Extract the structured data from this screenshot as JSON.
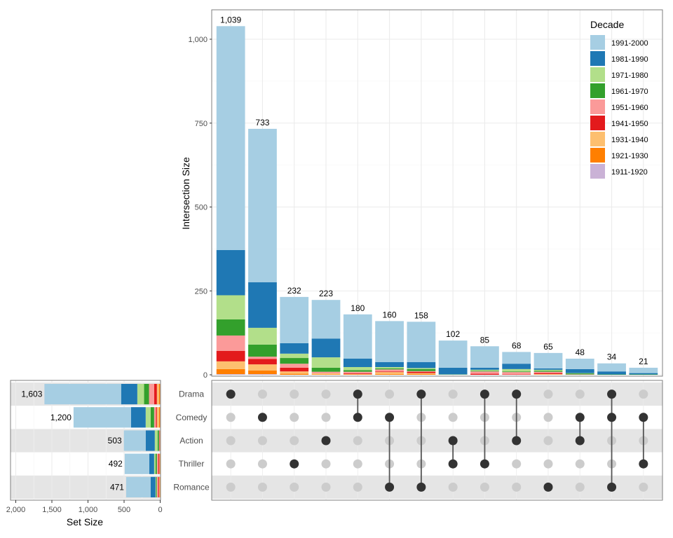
{
  "chart_data": {
    "type": "bar",
    "subtype": "upset-plot",
    "legend": {
      "title": "Decade",
      "placement": "top-right",
      "entries": [
        {
          "label": "1991-2000",
          "color": "#A6CEE3"
        },
        {
          "label": "1981-1990",
          "color": "#1F78B4"
        },
        {
          "label": "1971-1980",
          "color": "#B2DF8A"
        },
        {
          "label": "1961-1970",
          "color": "#33A02C"
        },
        {
          "label": "1951-1960",
          "color": "#FB9A99"
        },
        {
          "label": "1941-1950",
          "color": "#E31A1C"
        },
        {
          "label": "1931-1940",
          "color": "#FDBF6F"
        },
        {
          "label": "1921-1930",
          "color": "#FF7F00"
        },
        {
          "label": "1911-1920",
          "color": "#CAB2D6"
        }
      ]
    },
    "sets": [
      "Drama",
      "Comedy",
      "Action",
      "Thriller",
      "Romance"
    ],
    "intersections": {
      "ylabel": "Intersection Size",
      "ylim": [
        0,
        1090
      ],
      "yticks": [
        0,
        250,
        500,
        750,
        1000
      ],
      "ytick_labels": [
        "0",
        "250",
        "500",
        "750",
        "1,000"
      ],
      "grid": true,
      "bars": [
        {
          "label": "1,039",
          "total": 1039,
          "members": [
            "Drama"
          ],
          "segments": [
            667,
            135,
            72,
            48,
            46,
            31,
            23,
            15,
            2
          ]
        },
        {
          "label": "733",
          "total": 733,
          "members": [
            "Comedy"
          ],
          "segments": [
            457,
            136,
            50,
            36,
            7,
            16,
            18,
            11,
            2
          ]
        },
        {
          "label": "232",
          "total": 232,
          "members": [
            "Thriller"
          ],
          "segments": [
            138,
            31,
            13,
            17,
            12,
            11,
            7,
            3,
            0
          ]
        },
        {
          "label": "223",
          "total": 223,
          "members": [
            "Action"
          ],
          "segments": [
            115,
            56,
            31,
            12,
            5,
            0,
            3,
            1,
            0
          ]
        },
        {
          "label": "180",
          "total": 180,
          "members": [
            "Drama",
            "Comedy"
          ],
          "segments": [
            132,
            25,
            9,
            5,
            5,
            2,
            1,
            1,
            0
          ]
        },
        {
          "label": "160",
          "total": 160,
          "members": [
            "Comedy",
            "Romance"
          ],
          "segments": [
            122,
            15,
            4,
            3,
            6,
            2,
            6,
            2,
            0
          ]
        },
        {
          "label": "158",
          "total": 158,
          "members": [
            "Drama",
            "Romance"
          ],
          "segments": [
            120,
            18,
            3,
            6,
            2,
            4,
            3,
            2,
            0
          ]
        },
        {
          "label": "102",
          "total": 102,
          "members": [
            "Action",
            "Thriller"
          ],
          "segments": [
            81,
            20,
            1,
            0,
            0,
            0,
            0,
            0,
            0
          ]
        },
        {
          "label": "85",
          "total": 85,
          "members": [
            "Drama",
            "Thriller"
          ],
          "segments": [
            64,
            6,
            3,
            2,
            7,
            3,
            0,
            0,
            0
          ]
        },
        {
          "label": "68",
          "total": 68,
          "members": [
            "Drama",
            "Action"
          ],
          "segments": [
            35,
            16,
            7,
            2,
            7,
            1,
            0,
            0,
            0
          ]
        },
        {
          "label": "65",
          "total": 65,
          "members": [
            "Romance"
          ],
          "segments": [
            46,
            4,
            3,
            3,
            4,
            3,
            2,
            0,
            0
          ]
        },
        {
          "label": "48",
          "total": 48,
          "members": [
            "Comedy",
            "Action"
          ],
          "segments": [
            31,
            12,
            1,
            3,
            1,
            0,
            0,
            0,
            0
          ]
        },
        {
          "label": "34",
          "total": 34,
          "members": [
            "Drama",
            "Comedy",
            "Romance"
          ],
          "segments": [
            24,
            9,
            0,
            1,
            0,
            0,
            0,
            0,
            0
          ]
        },
        {
          "label": "21",
          "total": 21,
          "members": [
            "Comedy",
            "Thriller"
          ],
          "segments": [
            16,
            4,
            0,
            1,
            0,
            0,
            0,
            0,
            0
          ]
        }
      ]
    },
    "set_sizes": {
      "xlabel": "Set Size",
      "xlim": [
        2000,
        0
      ],
      "xticks": [
        2000,
        1500,
        1000,
        500,
        0
      ],
      "xtick_labels": [
        "2,000",
        "1,500",
        "1,000",
        "500",
        "0"
      ],
      "bars": [
        {
          "set": "Drama",
          "label": "1,603",
          "total": 1603,
          "segments": [
            1062,
            224,
            94,
            68,
            71,
            38,
            29,
            15,
            2
          ]
        },
        {
          "set": "Comedy",
          "label": "1,200",
          "total": 1200,
          "segments": [
            795,
            204,
            68,
            49,
            26,
            12,
            29,
            15,
            2
          ]
        },
        {
          "set": "Action",
          "label": "503",
          "total": 503,
          "segments": [
            302,
            126,
            39,
            19,
            8,
            5,
            3,
            1,
            0
          ]
        },
        {
          "set": "Thriller",
          "label": "492",
          "total": 492,
          "segments": [
            340,
            68,
            19,
            19,
            19,
            15,
            8,
            4,
            0
          ]
        },
        {
          "set": "Romance",
          "label": "471",
          "total": 471,
          "segments": [
            338,
            68,
            8,
            11,
            19,
            12,
            11,
            4,
            0
          ]
        }
      ]
    }
  }
}
